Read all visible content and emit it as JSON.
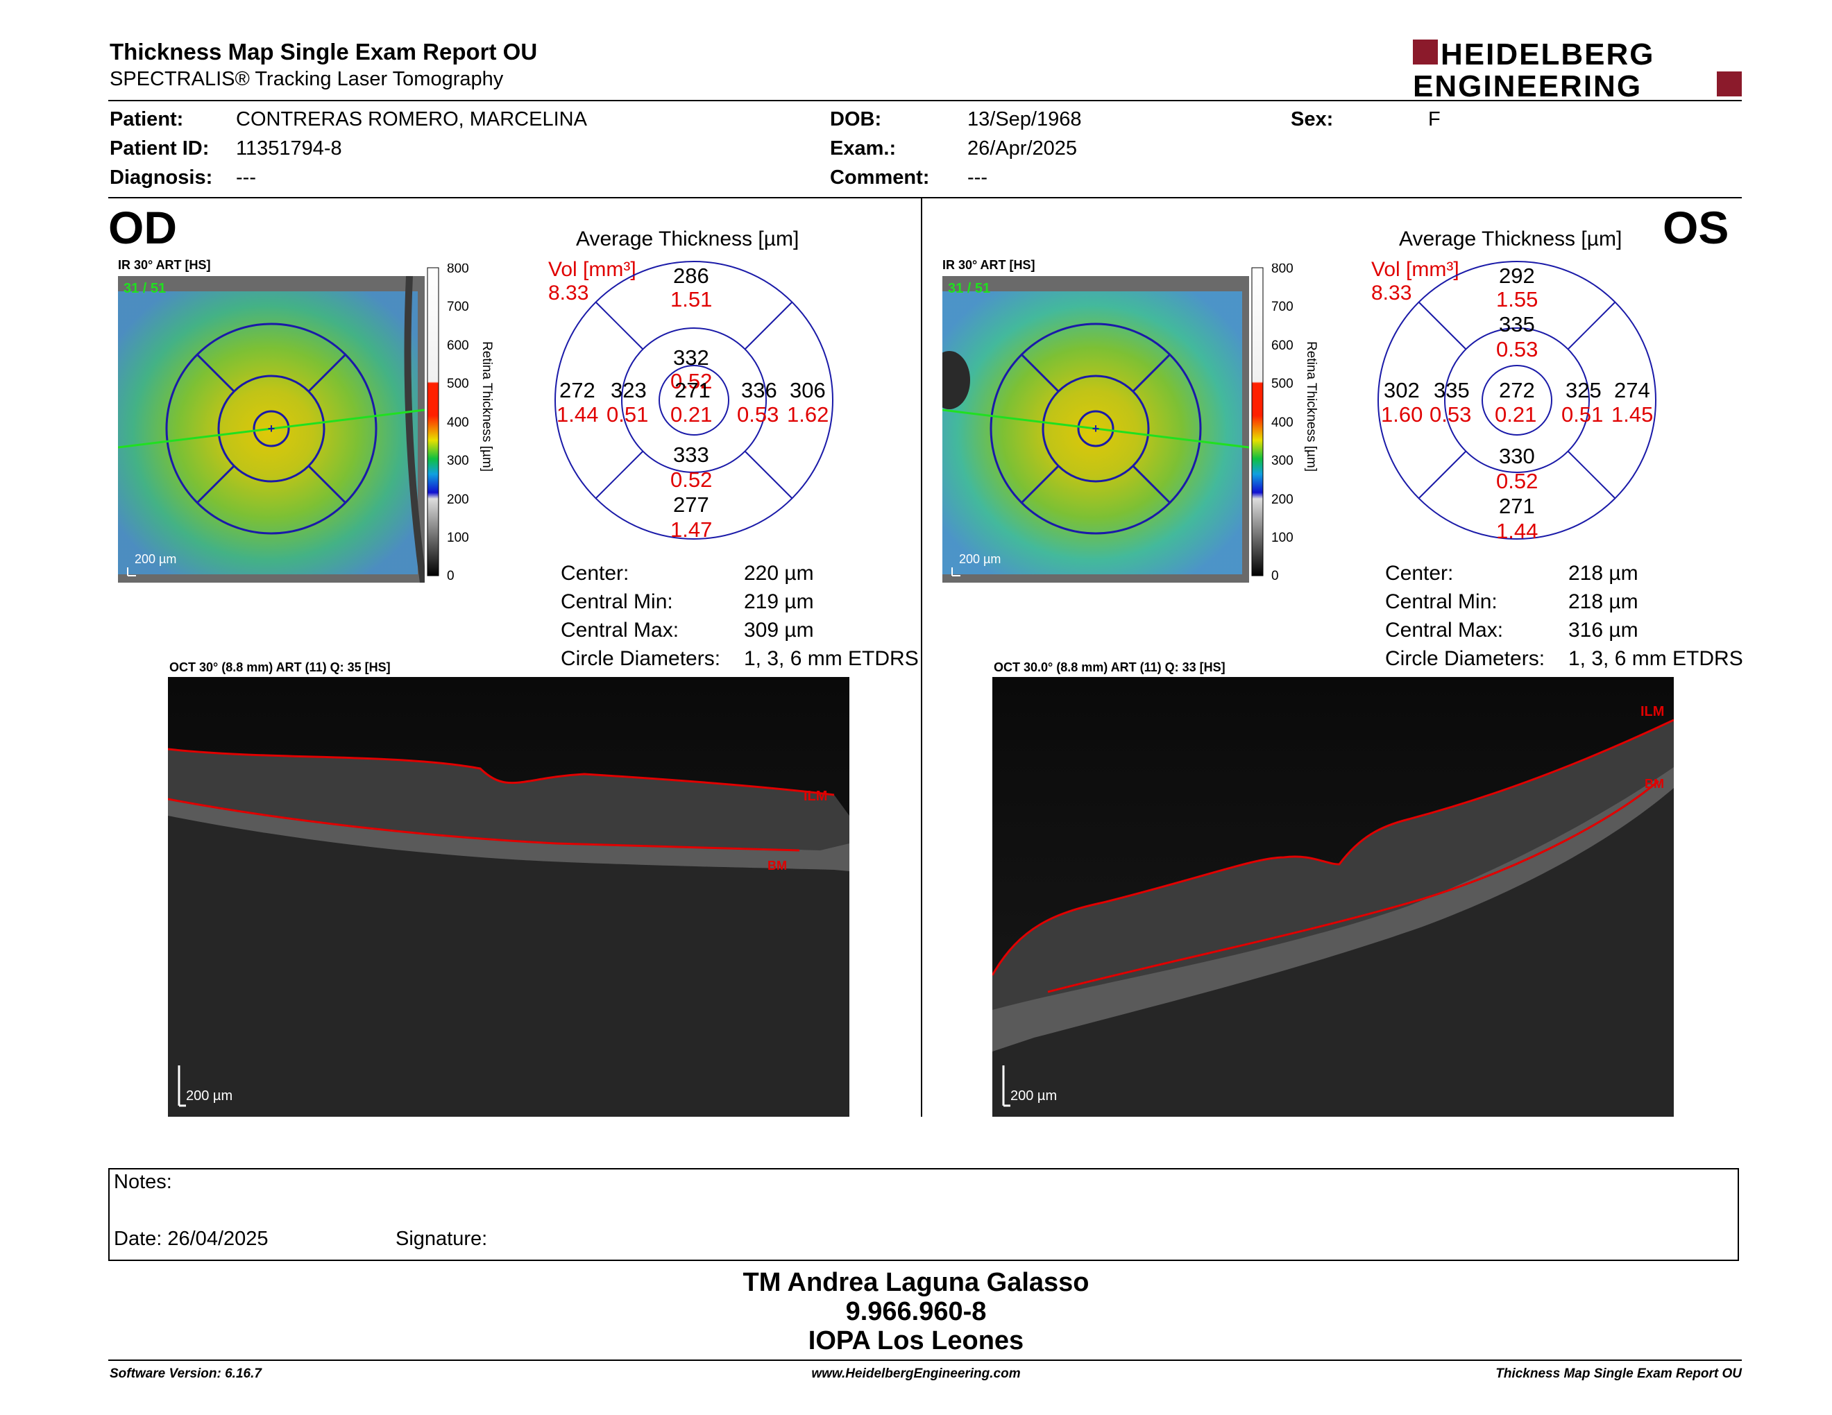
{
  "header": {
    "title": "Thickness Map Single Exam Report OU",
    "subtitle": "SPECTRALIS® Tracking Laser Tomography",
    "logo_line1": "HEIDELBERG",
    "logo_line2": "ENGINEERING"
  },
  "patient": {
    "patient_label": "Patient:",
    "patient_value": "CONTRERAS ROMERO, MARCELINA",
    "id_label": "Patient ID:",
    "id_value": "11351794-8",
    "diagnosis_label": "Diagnosis:",
    "diagnosis_value": "---",
    "dob_label": "DOB:",
    "dob_value": "13/Sep/1968",
    "exam_label": "Exam.:",
    "exam_value": "26/Apr/2025",
    "comment_label": "Comment:",
    "comment_value": "---",
    "sex_label": "Sex:",
    "sex_value": "F"
  },
  "od": {
    "eye_label": "OD",
    "ir_label": "IR 30° ART [HS]",
    "frame_count": "31 / 51",
    "scale_label": "200 µm",
    "colorbar_ticks": [
      "800",
      "700",
      "600",
      "500",
      "400",
      "300",
      "200",
      "100",
      "0"
    ],
    "colorbar_title": "Retina Thickness [µm]",
    "grid_title": "Average Thickness [µm]",
    "vol_label": "Vol [mm³]",
    "vol_value": "8.33",
    "sectors": {
      "outer_top": {
        "t": "286",
        "v": "1.51"
      },
      "inner_top": {
        "t": "332",
        "v": "0.52"
      },
      "outer_left": {
        "t": "272",
        "v": "1.44"
      },
      "inner_left": {
        "t": "323",
        "v": "0.51"
      },
      "center": {
        "t": "271",
        "v": "0.21"
      },
      "inner_right": {
        "t": "336",
        "v": "0.53"
      },
      "outer_right": {
        "t": "306",
        "v": "1.62"
      },
      "inner_bottom": {
        "t": "333",
        "v": "0.52"
      },
      "outer_bottom": {
        "t": "277",
        "v": "1.47"
      }
    },
    "stats": {
      "center_label": "Center:",
      "center_value": "220 µm",
      "min_label": "Central Min:",
      "min_value": "219 µm",
      "max_label": "Central Max:",
      "max_value": "309 µm",
      "diam_label": "Circle Diameters:",
      "diam_value": "1, 3, 6 mm ETDRS"
    },
    "oct_label": "OCT 30° (8.8 mm) ART (11) Q: 35 [HS]",
    "ilm": "ILM",
    "bm": "BM",
    "oct_scale": "200 µm"
  },
  "os": {
    "eye_label": "OS",
    "ir_label": "IR 30° ART [HS]",
    "frame_count": "31 / 51",
    "scale_label": "200 µm",
    "colorbar_ticks": [
      "800",
      "700",
      "600",
      "500",
      "400",
      "300",
      "200",
      "100",
      "0"
    ],
    "colorbar_title": "Retina Thickness [µm]",
    "grid_title": "Average Thickness [µm]",
    "vol_label": "Vol [mm³]",
    "vol_value": "8.33",
    "sectors": {
      "outer_top": {
        "t": "292",
        "v": "1.55"
      },
      "inner_top": {
        "t": "335",
        "v": "0.53"
      },
      "outer_left": {
        "t": "302",
        "v": "1.60"
      },
      "inner_left": {
        "t": "335",
        "v": "0.53"
      },
      "center": {
        "t": "272",
        "v": "0.21"
      },
      "inner_right": {
        "t": "325",
        "v": "0.51"
      },
      "outer_right": {
        "t": "274",
        "v": "1.45"
      },
      "inner_bottom": {
        "t": "330",
        "v": "0.52"
      },
      "outer_bottom": {
        "t": "271",
        "v": "1.44"
      }
    },
    "stats": {
      "center_label": "Center:",
      "center_value": "218 µm",
      "min_label": "Central Min:",
      "min_value": "218 µm",
      "max_label": "Central Max:",
      "max_value": "316 µm",
      "diam_label": "Circle Diameters:",
      "diam_value": "1, 3, 6 mm ETDRS"
    },
    "oct_label": "OCT 30.0° (8.8 mm) ART (11) Q: 33 [HS]",
    "ilm": "ILM",
    "bm": "BM",
    "oct_scale": "200 µm"
  },
  "notes": {
    "notes_label": "Notes:",
    "date_label": "Date: 26/04/2025",
    "signature_label": "Signature:"
  },
  "signature": {
    "name": "TM Andrea Laguna Galasso",
    "id": "9.966.960-8",
    "place": "IOPA Los Leones"
  },
  "footer": {
    "software": "Software Version: 6.16.7",
    "website": "www.HeidelbergEngineering.com",
    "report": "Thickness Map Single Exam Report OU"
  },
  "colors": {
    "accent_red": "#e00000",
    "logo_maroon": "#8b1a2b",
    "grid_blue": "#1a1aa8"
  }
}
